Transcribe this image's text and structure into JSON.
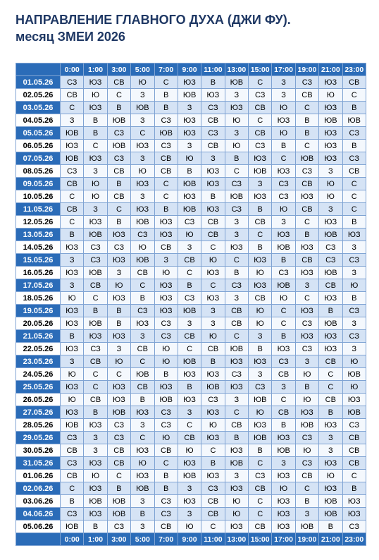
{
  "header": {
    "title_line1": "НАПРАВЛЕНИЕ ГЛАВНОГО ДУХА (ДЖИ ФУ).",
    "title_line2": "месяц ЗМЕИ 2026"
  },
  "table": {
    "columns": [
      "0:00",
      "1:00",
      "3:00",
      "5:00",
      "7:00",
      "9:00",
      "11:00",
      "13:00",
      "15:00",
      "17:00",
      "19:00",
      "21:00",
      "23:00"
    ],
    "rows": [
      [
        "01.05.26",
        "СЗ",
        "ЮЗ",
        "СВ",
        "Ю",
        "С",
        "ЮЗ",
        "В",
        "ЮВ",
        "С",
        "З",
        "СЗ",
        "ЮЗ",
        "СВ"
      ],
      [
        "02.05.26",
        "СВ",
        "Ю",
        "С",
        "З",
        "В",
        "ЮВ",
        "ЮЗ",
        "З",
        "СЗ",
        "З",
        "СВ",
        "Ю",
        "С"
      ],
      [
        "03.05.26",
        "С",
        "ЮЗ",
        "В",
        "ЮВ",
        "В",
        "З",
        "СЗ",
        "ЮЗ",
        "СВ",
        "Ю",
        "С",
        "ЮЗ",
        "В"
      ],
      [
        "04.05.26",
        "З",
        "В",
        "ЮВ",
        "З",
        "СЗ",
        "ЮЗ",
        "СВ",
        "Ю",
        "С",
        "ЮЗ",
        "В",
        "ЮВ",
        "ЮВ"
      ],
      [
        "05.05.26",
        "ЮВ",
        "В",
        "СЗ",
        "С",
        "ЮВ",
        "ЮЗ",
        "СЗ",
        "З",
        "СВ",
        "Ю",
        "В",
        "ЮЗ",
        "СЗ"
      ],
      [
        "06.05.26",
        "ЮЗ",
        "С",
        "ЮВ",
        "ЮЗ",
        "СЗ",
        "З",
        "СВ",
        "Ю",
        "СЗ",
        "В",
        "С",
        "ЮЗ",
        "В"
      ],
      [
        "07.05.26",
        "ЮВ",
        "ЮЗ",
        "СЗ",
        "З",
        "СВ",
        "Ю",
        "З",
        "В",
        "ЮЗ",
        "С",
        "ЮВ",
        "ЮЗ",
        "СЗ"
      ],
      [
        "08.05.26",
        "СЗ",
        "З",
        "СВ",
        "Ю",
        "СВ",
        "В",
        "ЮЗ",
        "С",
        "ЮВ",
        "ЮЗ",
        "СЗ",
        "З",
        "СВ"
      ],
      [
        "09.05.26",
        "СВ",
        "Ю",
        "В",
        "ЮЗ",
        "С",
        "ЮВ",
        "ЮЗ",
        "СЗ",
        "З",
        "СЗ",
        "СВ",
        "Ю",
        "С"
      ],
      [
        "10.05.26",
        "С",
        "Ю",
        "СВ",
        "З",
        "С",
        "ЮЗ",
        "В",
        "ЮВ",
        "ЮЗ",
        "СЗ",
        "ЮЗ",
        "Ю",
        "С"
      ],
      [
        "11.05.26",
        "СВ",
        "З",
        "С",
        "ЮЗ",
        "В",
        "ЮВ",
        "ЮЗ",
        "СЗ",
        "В",
        "Ю",
        "СВ",
        "З",
        "С"
      ],
      [
        "12.05.26",
        "С",
        "ЮЗ",
        "В",
        "ЮВ",
        "ЮЗ",
        "СЗ",
        "СВ",
        "З",
        "СВ",
        "З",
        "С",
        "ЮЗ",
        "В"
      ],
      [
        "13.05.26",
        "В",
        "ЮВ",
        "ЮЗ",
        "СЗ",
        "ЮЗ",
        "Ю",
        "СВ",
        "З",
        "С",
        "ЮЗ",
        "В",
        "ЮВ",
        "ЮЗ"
      ],
      [
        "14.05.26",
        "ЮЗ",
        "СЗ",
        "СЗ",
        "Ю",
        "СВ",
        "З",
        "С",
        "ЮЗ",
        "В",
        "ЮВ",
        "ЮЗ",
        "СЗ",
        "З"
      ],
      [
        "15.05.26",
        "З",
        "СЗ",
        "ЮЗ",
        "ЮВ",
        "З",
        "СВ",
        "Ю",
        "С",
        "ЮЗ",
        "В",
        "СВ",
        "СЗ",
        "СЗ"
      ],
      [
        "16.05.26",
        "ЮЗ",
        "ЮВ",
        "З",
        "СВ",
        "Ю",
        "С",
        "ЮЗ",
        "В",
        "Ю",
        "СЗ",
        "ЮЗ",
        "ЮВ",
        "З"
      ],
      [
        "17.05.26",
        "З",
        "СВ",
        "Ю",
        "С",
        "ЮЗ",
        "В",
        "С",
        "СЗ",
        "ЮЗ",
        "ЮВ",
        "З",
        "СВ",
        "Ю"
      ],
      [
        "18.05.26",
        "Ю",
        "С",
        "ЮЗ",
        "В",
        "ЮЗ",
        "СЗ",
        "ЮЗ",
        "З",
        "СВ",
        "Ю",
        "С",
        "ЮЗ",
        "В"
      ],
      [
        "19.05.26",
        "ЮЗ",
        "В",
        "В",
        "СЗ",
        "ЮЗ",
        "ЮВ",
        "З",
        "СВ",
        "Ю",
        "С",
        "ЮЗ",
        "В",
        "СЗ"
      ],
      [
        "20.05.26",
        "ЮЗ",
        "ЮВ",
        "В",
        "ЮЗ",
        "СЗ",
        "З",
        "З",
        "СВ",
        "Ю",
        "С",
        "СЗ",
        "ЮВ",
        "З"
      ],
      [
        "21.05.26",
        "В",
        "ЮЗ",
        "ЮЗ",
        "З",
        "СЗ",
        "СВ",
        "Ю",
        "С",
        "З",
        "В",
        "ЮЗ",
        "ЮЗ",
        "СЗ"
      ],
      [
        "22.05.26",
        "ЮЗ",
        "СЗ",
        "З",
        "СВ",
        "Ю",
        "С",
        "СВ",
        "ЮВ",
        "В",
        "ЮЗ",
        "СЗ",
        "ЮЗ",
        "З"
      ],
      [
        "23.05.26",
        "З",
        "СВ",
        "Ю",
        "С",
        "Ю",
        "ЮВ",
        "В",
        "ЮЗ",
        "ЮЗ",
        "СЗ",
        "З",
        "СВ",
        "Ю"
      ],
      [
        "24.05.26",
        "Ю",
        "С",
        "С",
        "ЮВ",
        "В",
        "ЮЗ",
        "ЮЗ",
        "СЗ",
        "З",
        "СВ",
        "Ю",
        "С",
        "ЮВ"
      ],
      [
        "25.05.26",
        "ЮЗ",
        "С",
        "ЮЗ",
        "СВ",
        "ЮЗ",
        "В",
        "ЮВ",
        "ЮЗ",
        "СЗ",
        "З",
        "В",
        "С",
        "Ю"
      ],
      [
        "26.05.26",
        "Ю",
        "СВ",
        "ЮЗ",
        "В",
        "ЮВ",
        "ЮЗ",
        "СЗ",
        "З",
        "ЮВ",
        "С",
        "Ю",
        "СВ",
        "ЮЗ"
      ],
      [
        "27.05.26",
        "ЮЗ",
        "В",
        "ЮВ",
        "ЮЗ",
        "СЗ",
        "З",
        "ЮЗ",
        "С",
        "Ю",
        "СВ",
        "ЮЗ",
        "В",
        "ЮВ"
      ],
      [
        "28.05.26",
        "ЮВ",
        "ЮЗ",
        "СЗ",
        "З",
        "СЗ",
        "С",
        "Ю",
        "СВ",
        "ЮЗ",
        "В",
        "ЮВ",
        "ЮЗ",
        "СЗ"
      ],
      [
        "29.05.26",
        "СЗ",
        "З",
        "СЗ",
        "С",
        "Ю",
        "СВ",
        "ЮЗ",
        "В",
        "ЮВ",
        "ЮЗ",
        "СЗ",
        "З",
        "СВ"
      ],
      [
        "30.05.26",
        "СВ",
        "З",
        "СВ",
        "ЮЗ",
        "СВ",
        "Ю",
        "С",
        "ЮЗ",
        "В",
        "ЮВ",
        "Ю",
        "З",
        "СВ"
      ],
      [
        "31.05.26",
        "СЗ",
        "ЮЗ",
        "СВ",
        "Ю",
        "С",
        "ЮЗ",
        "В",
        "ЮВ",
        "С",
        "З",
        "СЗ",
        "ЮЗ",
        "СВ"
      ],
      [
        "01.06.26",
        "СВ",
        "Ю",
        "С",
        "ЮЗ",
        "В",
        "ЮВ",
        "ЮЗ",
        "З",
        "СЗ",
        "ЮЗ",
        "СВ",
        "Ю",
        "С"
      ],
      [
        "02.06.26",
        "С",
        "ЮЗ",
        "В",
        "ЮВ",
        "В",
        "З",
        "СЗ",
        "ЮЗ",
        "СВ",
        "Ю",
        "С",
        "ЮЗ",
        "В"
      ],
      [
        "03.06.26",
        "В",
        "ЮВ",
        "ЮВ",
        "З",
        "СЗ",
        "ЮЗ",
        "СВ",
        "Ю",
        "С",
        "ЮЗ",
        "В",
        "ЮВ",
        "ЮЗ"
      ],
      [
        "04.06.26",
        "СЗ",
        "ЮЗ",
        "ЮВ",
        "В",
        "СЗ",
        "З",
        "СВ",
        "Ю",
        "С",
        "ЮЗ",
        "З",
        "ЮВ",
        "ЮЗ"
      ],
      [
        "05.06.26",
        "ЮВ",
        "В",
        "СЗ",
        "З",
        "СВ",
        "Ю",
        "С",
        "ЮЗ",
        "СВ",
        "ЮЗ",
        "ЮВ",
        "В",
        "СЗ"
      ]
    ]
  }
}
